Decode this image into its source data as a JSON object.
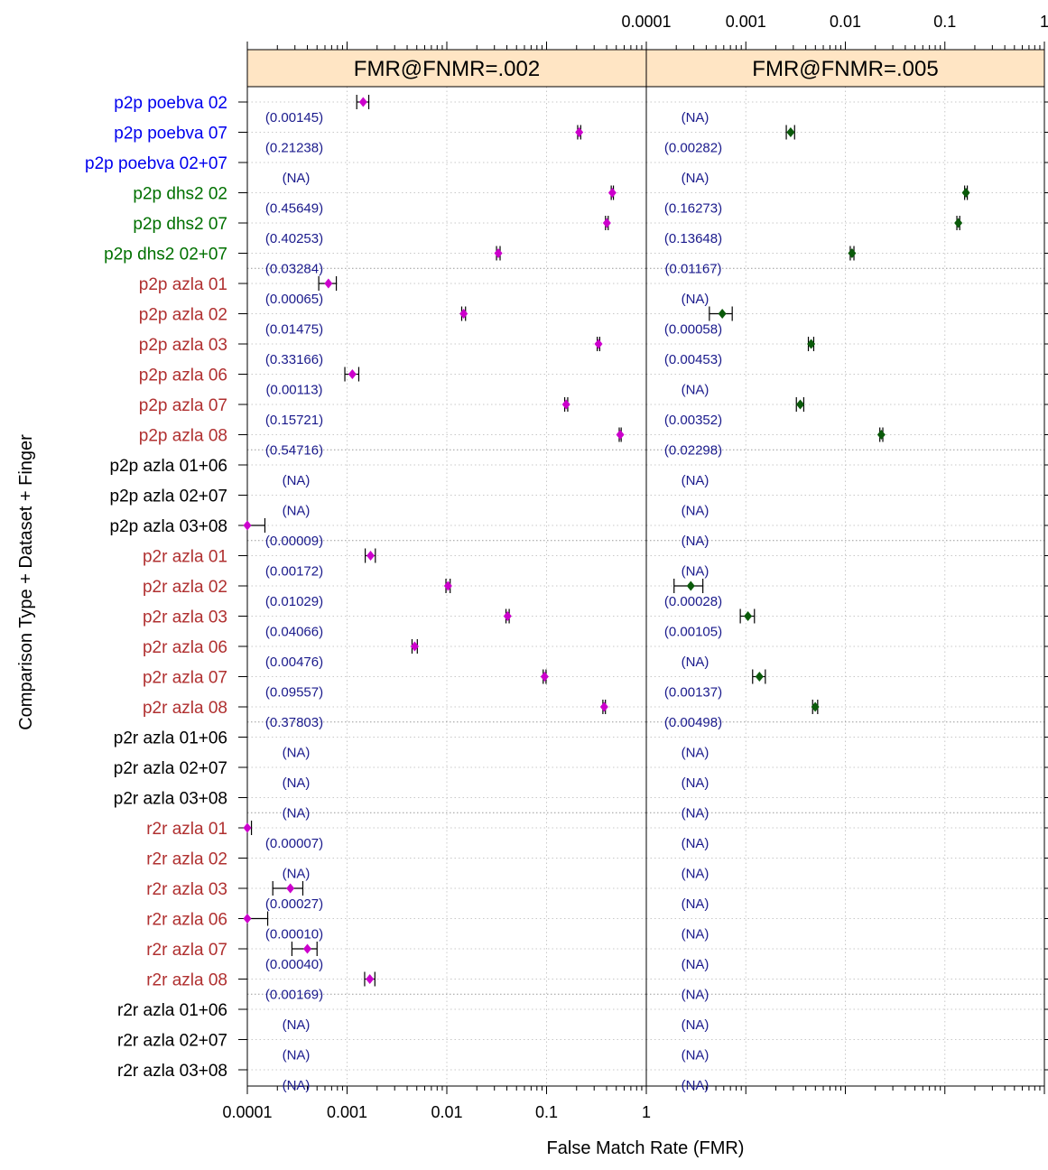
{
  "chart_data": {
    "type": "scatter",
    "ylabel": "Comparison Type + Dataset + Finger",
    "xlabel": "False Match Rate (FMR)",
    "x_scale": "log",
    "xlim": [
      0.0001,
      1
    ],
    "x_ticks": [
      0.0001,
      0.001,
      0.01,
      0.1,
      1
    ],
    "x_tick_labels": [
      "0.0001",
      "0.001",
      "0.01",
      "0.1",
      "1"
    ],
    "grid": true,
    "colors": {
      "strip_bg": "#ffe5c4",
      "blue": "#0000ee",
      "green": "#007000",
      "red": "#b03030",
      "black": "#000000",
      "panel1_marker": "#cc00cc",
      "panel2_marker": "#0a5a0a",
      "annotation": "#1a1a8c"
    },
    "categories": [
      {
        "label": "p2p poebva 02",
        "color": "blue"
      },
      {
        "label": "p2p poebva 07",
        "color": "blue"
      },
      {
        "label": "p2p poebva 02+07",
        "color": "blue"
      },
      {
        "label": "p2p dhs2 02",
        "color": "green"
      },
      {
        "label": "p2p dhs2 07",
        "color": "green"
      },
      {
        "label": "p2p dhs2 02+07",
        "color": "green"
      },
      {
        "label": "p2p azla 01",
        "color": "red"
      },
      {
        "label": "p2p azla 02",
        "color": "red"
      },
      {
        "label": "p2p azla 03",
        "color": "red"
      },
      {
        "label": "p2p azla 06",
        "color": "red"
      },
      {
        "label": "p2p azla 07",
        "color": "red"
      },
      {
        "label": "p2p azla 08",
        "color": "red"
      },
      {
        "label": "p2p azla 01+06",
        "color": "black"
      },
      {
        "label": "p2p azla 02+07",
        "color": "black"
      },
      {
        "label": "p2p azla 03+08",
        "color": "black"
      },
      {
        "label": "p2r azla 01",
        "color": "red"
      },
      {
        "label": "p2r azla 02",
        "color": "red"
      },
      {
        "label": "p2r azla 03",
        "color": "red"
      },
      {
        "label": "p2r azla 06",
        "color": "red"
      },
      {
        "label": "p2r azla 07",
        "color": "red"
      },
      {
        "label": "p2r azla 08",
        "color": "red"
      },
      {
        "label": "p2r azla 01+06",
        "color": "black"
      },
      {
        "label": "p2r azla 02+07",
        "color": "black"
      },
      {
        "label": "p2r azla 03+08",
        "color": "black"
      },
      {
        "label": "r2r azla 01",
        "color": "red"
      },
      {
        "label": "r2r azla 02",
        "color": "red"
      },
      {
        "label": "r2r azla 03",
        "color": "red"
      },
      {
        "label": "r2r azla 06",
        "color": "red"
      },
      {
        "label": "r2r azla 07",
        "color": "red"
      },
      {
        "label": "r2r azla 08",
        "color": "red"
      },
      {
        "label": "r2r azla 01+06",
        "color": "black"
      },
      {
        "label": "r2r azla 02+07",
        "color": "black"
      },
      {
        "label": "r2r azla 03+08",
        "color": "black"
      }
    ],
    "panels": [
      {
        "title": "FMR@FNMR=.002",
        "marker_color": "panel1_marker",
        "points": [
          {
            "x": 0.00145,
            "lo": 0.00125,
            "hi": 0.00165,
            "label": "(0.00145)"
          },
          {
            "x": 0.21238,
            "lo": 0.205,
            "hi": 0.22,
            "label": "(0.21238)"
          },
          {
            "x": null,
            "label": "(NA)"
          },
          {
            "x": 0.45649,
            "lo": 0.445,
            "hi": 0.468,
            "label": "(0.45649)"
          },
          {
            "x": 0.40253,
            "lo": 0.39,
            "hi": 0.415,
            "label": "(0.40253)"
          },
          {
            "x": 0.03284,
            "lo": 0.0315,
            "hi": 0.0342,
            "label": "(0.03284)"
          },
          {
            "x": 0.00065,
            "lo": 0.00052,
            "hi": 0.00078,
            "label": "(0.00065)"
          },
          {
            "x": 0.01475,
            "lo": 0.0141,
            "hi": 0.0154,
            "label": "(0.01475)"
          },
          {
            "x": 0.33166,
            "lo": 0.322,
            "hi": 0.341,
            "label": "(0.33166)"
          },
          {
            "x": 0.00113,
            "lo": 0.00095,
            "hi": 0.00131,
            "label": "(0.00113)"
          },
          {
            "x": 0.15721,
            "lo": 0.152,
            "hi": 0.163,
            "label": "(0.15721)"
          },
          {
            "x": 0.54716,
            "lo": 0.535,
            "hi": 0.56,
            "label": "(0.54716)"
          },
          {
            "x": null,
            "label": "(NA)"
          },
          {
            "x": null,
            "label": "(NA)"
          },
          {
            "x": 9e-05,
            "lo": 5e-05,
            "hi": 0.00015,
            "label": "(0.00009)"
          },
          {
            "x": 0.00172,
            "lo": 0.00152,
            "hi": 0.00192,
            "label": "(0.00172)"
          },
          {
            "x": 0.01029,
            "lo": 0.0098,
            "hi": 0.0108,
            "label": "(0.01029)"
          },
          {
            "x": 0.04066,
            "lo": 0.0392,
            "hi": 0.0422,
            "label": "(0.04066)"
          },
          {
            "x": 0.00476,
            "lo": 0.00448,
            "hi": 0.00506,
            "label": "(0.00476)"
          },
          {
            "x": 0.09557,
            "lo": 0.0925,
            "hi": 0.0988,
            "label": "(0.09557)"
          },
          {
            "x": 0.37803,
            "lo": 0.367,
            "hi": 0.389,
            "label": "(0.37803)"
          },
          {
            "x": null,
            "label": "(NA)"
          },
          {
            "x": null,
            "label": "(NA)"
          },
          {
            "x": null,
            "label": "(NA)"
          },
          {
            "x": 7e-05,
            "lo": 4e-05,
            "hi": 0.00011,
            "label": "(0.00007)"
          },
          {
            "x": null,
            "label": "(NA)"
          },
          {
            "x": 0.00027,
            "lo": 0.00018,
            "hi": 0.00036,
            "label": "(0.00027)"
          },
          {
            "x": 0.0001,
            "lo": 6e-05,
            "hi": 0.00016,
            "label": "(0.00010)"
          },
          {
            "x": 0.0004,
            "lo": 0.00028,
            "hi": 0.0005,
            "label": "(0.00040)"
          },
          {
            "x": 0.00169,
            "lo": 0.0015,
            "hi": 0.0019,
            "label": "(0.00169)"
          },
          {
            "x": null,
            "label": "(NA)"
          },
          {
            "x": null,
            "label": "(NA)"
          },
          {
            "x": null,
            "label": "(NA)"
          }
        ]
      },
      {
        "title": "FMR@FNMR=.005",
        "marker_color": "panel2_marker",
        "points": [
          {
            "x": null,
            "label": "(NA)"
          },
          {
            "x": 0.00282,
            "lo": 0.00255,
            "hi": 0.00309,
            "label": "(0.00282)"
          },
          {
            "x": null,
            "label": "(NA)"
          },
          {
            "x": 0.16273,
            "lo": 0.158,
            "hi": 0.168,
            "label": "(0.16273)"
          },
          {
            "x": 0.13648,
            "lo": 0.132,
            "hi": 0.141,
            "label": "(0.13648)"
          },
          {
            "x": 0.01167,
            "lo": 0.0112,
            "hi": 0.0122,
            "label": "(0.01167)"
          },
          {
            "x": null,
            "label": "(NA)"
          },
          {
            "x": 0.00058,
            "lo": 0.00043,
            "hi": 0.00073,
            "label": "(0.00058)"
          },
          {
            "x": 0.00453,
            "lo": 0.00425,
            "hi": 0.00481,
            "label": "(0.00453)"
          },
          {
            "x": null,
            "label": "(NA)"
          },
          {
            "x": 0.00352,
            "lo": 0.00322,
            "hi": 0.00382,
            "label": "(0.00352)"
          },
          {
            "x": 0.02298,
            "lo": 0.0222,
            "hi": 0.0238,
            "label": "(0.02298)"
          },
          {
            "x": null,
            "label": "(NA)"
          },
          {
            "x": null,
            "label": "(NA)"
          },
          {
            "x": null,
            "label": "(NA)"
          },
          {
            "x": null,
            "label": "(NA)"
          },
          {
            "x": 0.00028,
            "lo": 0.00019,
            "hi": 0.00037,
            "label": "(0.00028)"
          },
          {
            "x": 0.00105,
            "lo": 0.00088,
            "hi": 0.00122,
            "label": "(0.00105)"
          },
          {
            "x": null,
            "label": "(NA)"
          },
          {
            "x": 0.00137,
            "lo": 0.00117,
            "hi": 0.00157,
            "label": "(0.00137)"
          },
          {
            "x": 0.00498,
            "lo": 0.00469,
            "hi": 0.00527,
            "label": "(0.00498)"
          },
          {
            "x": null,
            "label": "(NA)"
          },
          {
            "x": null,
            "label": "(NA)"
          },
          {
            "x": null,
            "label": "(NA)"
          },
          {
            "x": null,
            "label": "(NA)"
          },
          {
            "x": null,
            "label": "(NA)"
          },
          {
            "x": null,
            "label": "(NA)"
          },
          {
            "x": null,
            "label": "(NA)"
          },
          {
            "x": null,
            "label": "(NA)"
          },
          {
            "x": null,
            "label": "(NA)"
          },
          {
            "x": null,
            "label": "(NA)"
          },
          {
            "x": null,
            "label": "(NA)"
          },
          {
            "x": null,
            "label": "(NA)"
          }
        ]
      }
    ]
  }
}
